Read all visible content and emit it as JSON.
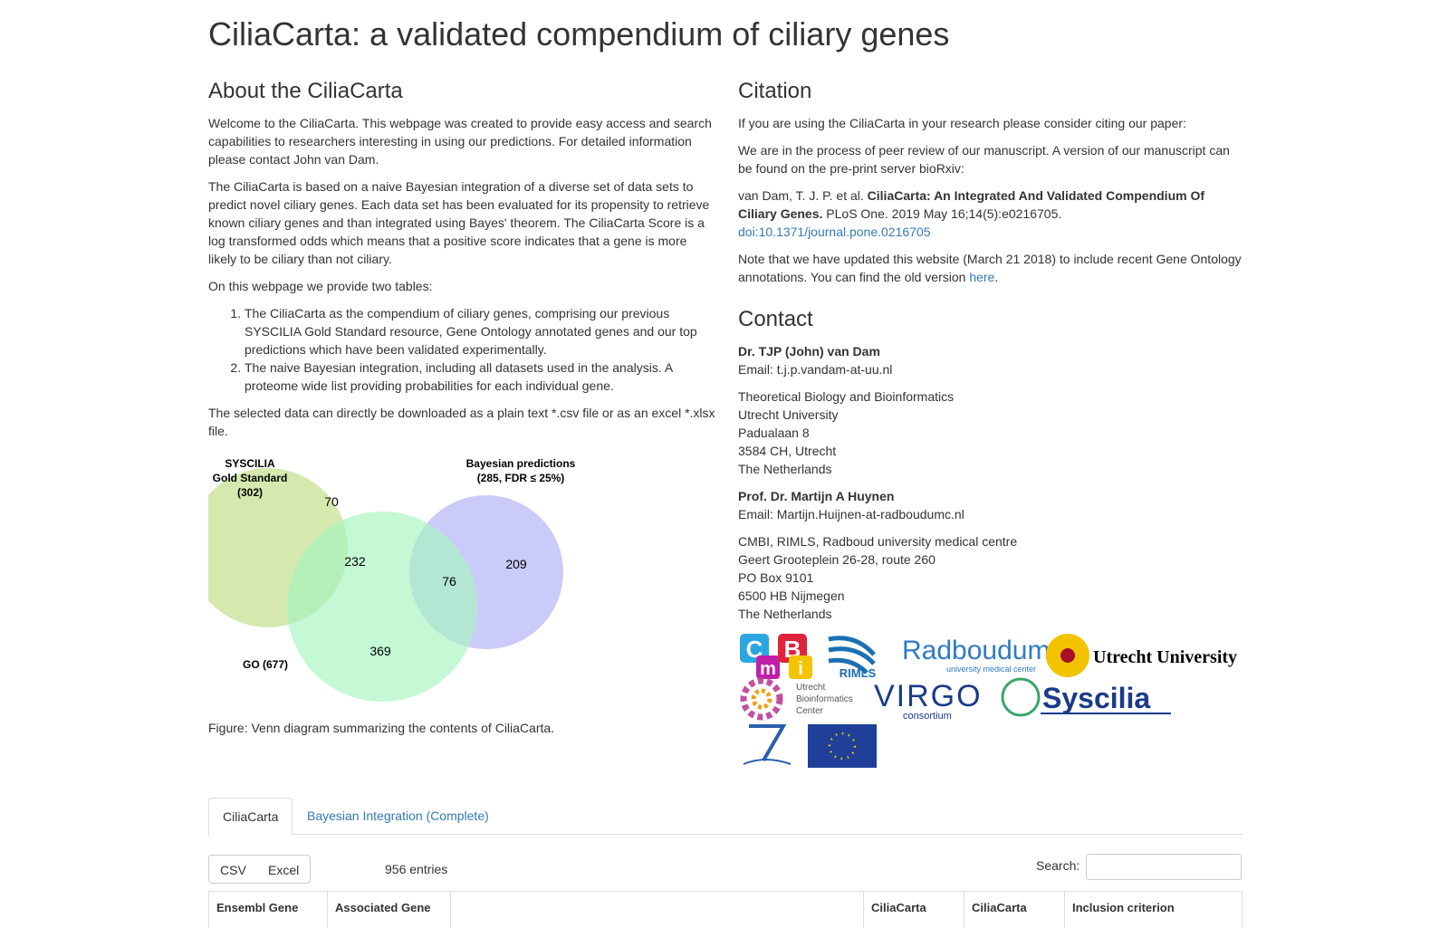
{
  "title": "CiliaCarta: a validated compendium of ciliary genes",
  "about": {
    "heading": "About the CiliaCarta",
    "paragraphs": [
      "Welcome to the CiliaCarta. This webpage was created to provide easy access and search capabilities to researchers interesting in using our predictions. For detailed information please contact John van Dam.",
      "The CiliaCarta is based on a naive Bayesian integration of a diverse set of data sets to predict novel ciliary genes. Each data set has been evaluated for its propensity to retrieve known ciliary genes and than integrated using Bayes' theorem. The CiliaCarta Score is a log transformed odds which means that a positive score indicates that a gene is more likely to be ciliary than not ciliary.",
      "On this webpage we provide two tables:"
    ],
    "list": [
      "The CiliaCarta as the compendium of ciliary genes, comprising our previous SYSCILIA Gold Standard resource, Gene Ontology annotated genes and our top predictions which have been validated experimentally.",
      "The naive Bayesian integration, including all datasets used in the analysis. A proteome wide list providing probabilities for each individual gene."
    ],
    "download": "The selected data can directly be downloaded as a plain text *.csv file or as an excel *.xlsx file.",
    "caption": "Figure: Venn diagram summarizing the contents of CiliaCarta."
  },
  "venn": {
    "labels": [
      "SYSCILIA",
      "Gold Standard",
      "(302)",
      "Bayesian predictions",
      "(285, FDR ≤ 25%)",
      "GO (677)"
    ],
    "regions": [
      "70",
      "232",
      "76",
      "209",
      "369"
    ]
  },
  "citation": {
    "heading": "Citation",
    "intro": "If you are using the CiliaCarta in your research please consider citing our paper:",
    "review": "We are in the process of peer review of our manuscript. A version of our manuscript can be found on the pre-print server bioRxiv:",
    "authors": "van Dam, T. J. P. et al.",
    "paper": "CiliaCarta: An Integrated And Validated Compendium Of Ciliary Genes.",
    "journal": "PLoS One. 2019 May 16;14(5):e0216705.",
    "doi": "doi:10.1371/journal.pone.0216705",
    "note": "Note that we have updated this website (March 21 2018) to include recent Gene Ontology annotations. You can find the old version",
    "note_link": "here",
    "note_end": "."
  },
  "contact": {
    "heading": "Contact",
    "people": [
      {
        "name": "Dr. TJP (John) van Dam",
        "email": "Email: t.j.p.vandam-at-uu.nl",
        "address": [
          "Theoretical Biology and Bioinformatics",
          "Utrecht University",
          "Padualaan 8",
          "3584 CH, Utrecht",
          "The Netherlands"
        ]
      },
      {
        "name": "Prof. Dr. Martijn A Huynen",
        "email": "Email: Martijn.Huijnen-at-radboudumc.nl",
        "address": [
          "CMBI, RIMLS, Radboud university medical centre",
          "Geert Grooteplein 26-28, route 260",
          "PO Box 9101",
          "6500 HB Nijmegen",
          "The Netherlands"
        ]
      }
    ]
  },
  "logos": {
    "cmbi": [
      "C",
      "m",
      "B",
      "i"
    ],
    "rimls": "RIMLS",
    "radboud": "Radboudumc",
    "radboud_sub": "university medical center",
    "uu": "Utrecht University",
    "ubc": [
      "Utrecht",
      "Bioinformatics",
      "Center"
    ],
    "virgo": "VIRGO",
    "virgo_sub": "consortium",
    "syscilia": "Syscilia"
  },
  "tabs": [
    "CiliaCarta",
    "Bayesian Integration (Complete)"
  ],
  "buttons": [
    "CSV",
    "Excel"
  ],
  "entries": "956 entries",
  "search_label": "Search:",
  "table_headers": [
    "Ensembl Gene",
    "Associated Gene",
    "CiliaCarta",
    "CiliaCarta",
    "Inclusion criterion"
  ]
}
